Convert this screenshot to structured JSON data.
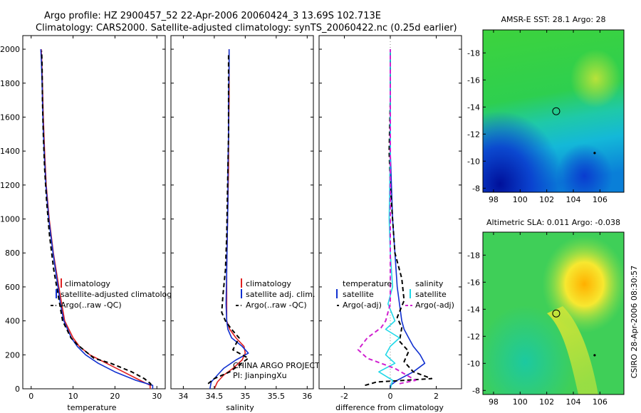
{
  "figure": {
    "title_line1": "Argo profile: HZ 2900457_52 22-Apr-2006 20060424_3 13.69S 102.713E",
    "title_line2": "Climatology: CARS2000. Satellite-adjusted climatology: synTS_20060422.nc (0.25d earlier)",
    "credit": "CSIRO 28-Apr-2006 08:30:57",
    "project_line1": "CHINA ARGO PROJECT",
    "project_line2": "PI: JianpingXu"
  },
  "colors": {
    "climatology": "#e02020",
    "satellite": "#1030d0",
    "argo": "#000000",
    "sat_diff": "#20d8e8",
    "argo_adj": "#d020d0"
  },
  "chart_data": [
    {
      "type": "line",
      "id": "temperature",
      "xlabel": "temperature",
      "ylabel": "",
      "xlim": [
        -2,
        32
      ],
      "ylim": [
        2080,
        0
      ],
      "xticks": [
        0,
        10,
        20,
        30
      ],
      "yticks": [
        0,
        200,
        400,
        600,
        800,
        1000,
        1200,
        1400,
        1600,
        1800,
        2000
      ],
      "legend": [
        "climatology",
        "satellite-adjusted climatology",
        "Argo(..raw -QC)"
      ],
      "series": [
        {
          "name": "climatology",
          "color_key": "climatology",
          "style": "solid",
          "x": [
            28.4,
            28.4,
            26,
            22,
            18,
            14,
            11.5,
            10,
            9,
            8,
            7.3,
            6.6,
            5.3,
            4.3,
            3.6,
            3.2,
            2.9,
            2.7,
            2.5,
            2.4
          ],
          "y": [
            0,
            20,
            50,
            100,
            150,
            200,
            250,
            300,
            350,
            400,
            500,
            600,
            800,
            1000,
            1200,
            1400,
            1600,
            1800,
            1950,
            2000
          ]
        },
        {
          "name": "satellite-adjusted climatology",
          "color_key": "satellite",
          "style": "solid",
          "x": [
            29,
            29,
            25,
            20,
            16,
            13,
            11,
            9.6,
            8.7,
            7.8,
            7,
            6.4,
            5.2,
            4.2,
            3.5,
            3.1,
            2.8,
            2.6,
            2.4,
            2.3
          ],
          "y": [
            0,
            20,
            50,
            100,
            150,
            200,
            250,
            300,
            350,
            400,
            500,
            600,
            800,
            1000,
            1200,
            1400,
            1600,
            1800,
            1950,
            2000
          ]
        },
        {
          "name": "Argo(..raw -QC)",
          "color_key": "argo",
          "style": "dashed",
          "x": [
            28.6,
            28.5,
            27,
            24,
            19,
            15,
            13,
            11,
            9.5,
            8.5,
            7.5,
            6.8,
            5.4,
            4.4,
            3.7,
            3.2,
            2.9,
            2.7,
            2.6,
            2.5
          ],
          "y": [
            20,
            30,
            60,
            100,
            150,
            180,
            220,
            260,
            300,
            350,
            400,
            500,
            700,
            900,
            1100,
            1300,
            1500,
            1700,
            1900,
            1990
          ]
        }
      ]
    },
    {
      "type": "line",
      "id": "salinity",
      "xlabel": "salinity",
      "ylabel": "",
      "xlim": [
        33.8,
        36.1
      ],
      "ylim": [
        2080,
        0
      ],
      "xticks": [
        34,
        34.5,
        35,
        35.5,
        36
      ],
      "legend": [
        "climatology",
        "satellite adj. clim.",
        "Argo(..raw -QC)"
      ],
      "series": [
        {
          "name": "climatology",
          "color_key": "climatology",
          "style": "solid",
          "x": [
            34.5,
            34.55,
            34.65,
            34.8,
            34.95,
            35.0,
            34.98,
            34.85,
            34.75,
            34.7,
            34.7,
            34.7,
            34.71,
            34.72,
            34.73,
            34.73,
            34.74,
            34.74,
            34.74
          ],
          "y": [
            0,
            40,
            80,
            120,
            170,
            210,
            250,
            300,
            350,
            400,
            500,
            700,
            900,
            1100,
            1300,
            1500,
            1700,
            1900,
            2000
          ]
        },
        {
          "name": "satellite adj. clim.",
          "color_key": "satellite",
          "style": "solid",
          "x": [
            34.43,
            34.45,
            34.55,
            34.65,
            34.85,
            35.05,
            34.95,
            34.78,
            34.72,
            34.7,
            34.69,
            34.7,
            34.71,
            34.72,
            34.72,
            34.73,
            34.73,
            34.74,
            34.74
          ],
          "y": [
            0,
            40,
            80,
            120,
            170,
            210,
            250,
            300,
            350,
            400,
            500,
            700,
            900,
            1100,
            1300,
            1500,
            1700,
            1900,
            2000
          ]
        },
        {
          "name": "Argo(..raw -QC)",
          "color_key": "argo",
          "style": "dashed",
          "x": [
            34.4,
            34.5,
            34.75,
            34.9,
            35.05,
            34.8,
            34.9,
            34.78,
            34.68,
            34.62,
            34.64,
            34.68,
            34.7,
            34.71,
            34.72,
            34.73,
            34.73,
            34.73
          ],
          "y": [
            30,
            60,
            100,
            140,
            180,
            230,
            300,
            350,
            400,
            450,
            550,
            700,
            900,
            1100,
            1300,
            1500,
            1700,
            1980
          ]
        }
      ]
    },
    {
      "type": "line",
      "id": "difference",
      "xlabel": "difference from climatology",
      "ylabel": "",
      "xlim": [
        -3.1,
        3.1
      ],
      "ylim": [
        2080,
        0
      ],
      "xticks": [
        -2,
        0,
        2
      ],
      "legend_groups": [
        {
          "title": "temperature",
          "items": [
            "satellite",
            "Argo(-adj)"
          ]
        },
        {
          "title": "salinity",
          "items": [
            "satellite",
            "Argo(-adj)"
          ]
        }
      ],
      "series": [
        {
          "name": "temperature satellite",
          "color_key": "satellite",
          "style": "solid",
          "x": [
            0,
            0,
            0.3,
            1.0,
            1.5,
            1.3,
            1.0,
            0.8,
            0.6,
            0.5,
            0.4,
            0.3,
            0.2,
            0.1,
            0.05,
            0.0,
            0.0,
            0.0
          ],
          "y": [
            0,
            20,
            50,
            100,
            150,
            200,
            250,
            300,
            350,
            400,
            500,
            600,
            800,
            1000,
            1200,
            1400,
            1700,
            2000
          ]
        },
        {
          "name": "temperature Argo(-adj)",
          "color_key": "argo",
          "style": "dashed",
          "x": [
            -1.1,
            -0.6,
            1.8,
            1.0,
            0.6,
            0.8,
            0.4,
            0.5,
            0.3,
            0.6,
            0.5,
            0.2,
            0.1,
            0.0,
            -0.05,
            0.0,
            0.0
          ],
          "y": [
            20,
            40,
            60,
            100,
            160,
            220,
            280,
            360,
            420,
            520,
            650,
            800,
            1000,
            1200,
            1400,
            1700,
            1990
          ]
        },
        {
          "name": "salinity satellite",
          "color_key": "sat_diff",
          "style": "solid",
          "x": [
            0,
            0.1,
            -0.5,
            0.2,
            -0.2,
            0.0,
            0.4,
            -0.2,
            0.2,
            -0.1,
            0.1,
            0.0,
            -0.05,
            0.0,
            0.0
          ],
          "y": [
            0,
            50,
            100,
            150,
            200,
            250,
            300,
            350,
            400,
            500,
            600,
            800,
            1000,
            1400,
            2000
          ]
        },
        {
          "name": "salinity Argo(-adj)",
          "color_key": "argo_adj",
          "style": "dashed",
          "x": [
            0.4,
            1.1,
            0.2,
            -1.0,
            -1.4,
            -1.0,
            -0.4,
            -0.2,
            0.0,
            0.0,
            0.0,
            0.0
          ],
          "y": [
            30,
            50,
            120,
            180,
            230,
            300,
            360,
            400,
            500,
            800,
            1200,
            2000
          ]
        }
      ]
    },
    {
      "type": "heatmap",
      "id": "sst_map",
      "title": "AMSR-E SST: 28.1 Argo: 28",
      "xlim": [
        97.2,
        107.8
      ],
      "ylim": [
        -19.7,
        -7.7
      ],
      "xticks": [
        98,
        100,
        102,
        104,
        106
      ],
      "yticks": [
        -8,
        -10,
        -12,
        -14,
        -16,
        -18
      ],
      "marker_circle": {
        "lon": 102.71,
        "lat": -13.69
      },
      "marker_dot": {
        "lon": 105.6,
        "lat": -10.6
      }
    },
    {
      "type": "heatmap",
      "id": "sla_map",
      "title": "Altimetric SLA: 0.011 Argo: -0.038",
      "xlim": [
        97.2,
        107.8
      ],
      "ylim": [
        -19.7,
        -7.7
      ],
      "xticks": [
        98,
        100,
        102,
        104,
        106
      ],
      "yticks": [
        -8,
        -10,
        -12,
        -14,
        -16,
        -18
      ],
      "marker_circle": {
        "lon": 102.71,
        "lat": -13.69
      },
      "marker_dot": {
        "lon": 105.6,
        "lat": -10.6
      }
    }
  ]
}
